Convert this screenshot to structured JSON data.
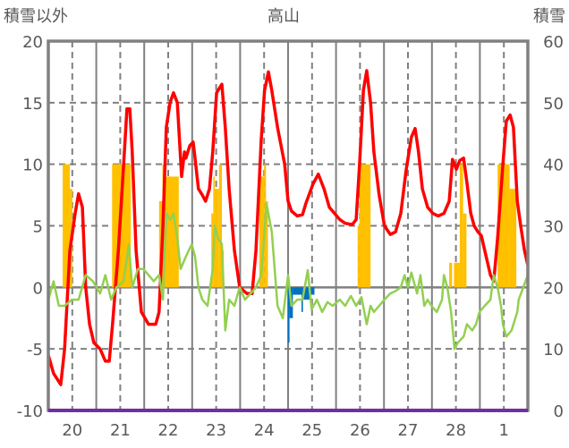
{
  "chart_data": {
    "type": "line",
    "title": "高山",
    "ylabel_left": "積雪以外",
    "ylabel_right": "積雪",
    "ylim_left": [
      -10,
      20
    ],
    "ylim_right": [
      0,
      60
    ],
    "yticks_left": [
      "-10",
      "-5",
      "0",
      "5",
      "10",
      "15",
      "20"
    ],
    "yticks_right": [
      "0",
      "10",
      "20",
      "30",
      "40",
      "50",
      "60"
    ],
    "xlim_days": [
      0,
      10
    ],
    "x_tick_labels": [
      "20",
      "21",
      "22",
      "23",
      "24",
      "25",
      "26",
      "27",
      "28",
      "1"
    ],
    "grid": true,
    "colors": {
      "red": "#ff0000",
      "green": "#92d050",
      "yellow": "#ffc000",
      "blue": "#0070c0",
      "purple": "#7030a0",
      "axis": "#808080",
      "text": "#595959"
    },
    "series": [
      {
        "name": "red-line",
        "axis": "left",
        "color": "#ff0000",
        "points": [
          [
            0,
            -5.5
          ],
          [
            0.11,
            -7
          ],
          [
            0.26,
            -7.9
          ],
          [
            0.34,
            -5
          ],
          [
            0.45,
            3
          ],
          [
            0.56,
            6
          ],
          [
            0.63,
            7.6
          ],
          [
            0.71,
            6.5
          ],
          [
            0.78,
            0
          ],
          [
            0.86,
            -3
          ],
          [
            0.95,
            -4.5
          ],
          [
            1.08,
            -5
          ],
          [
            1.19,
            -6
          ],
          [
            1.27,
            -6
          ],
          [
            1.34,
            -3
          ],
          [
            1.46,
            3
          ],
          [
            1.57,
            10
          ],
          [
            1.64,
            14.5
          ],
          [
            1.7,
            14.5
          ],
          [
            1.75,
            11
          ],
          [
            1.83,
            3
          ],
          [
            1.94,
            -2
          ],
          [
            2.09,
            -3
          ],
          [
            2.24,
            -3
          ],
          [
            2.31,
            -2
          ],
          [
            2.39,
            5
          ],
          [
            2.46,
            13
          ],
          [
            2.54,
            15
          ],
          [
            2.61,
            15.8
          ],
          [
            2.69,
            15
          ],
          [
            2.72,
            13
          ],
          [
            2.78,
            9
          ],
          [
            2.84,
            11
          ],
          [
            2.87,
            10.5
          ],
          [
            2.95,
            11.5
          ],
          [
            3.02,
            11.8
          ],
          [
            3.06,
            10.5
          ],
          [
            3.13,
            8
          ],
          [
            3.21,
            7.5
          ],
          [
            3.28,
            7
          ],
          [
            3.36,
            8
          ],
          [
            3.43,
            11
          ],
          [
            3.51,
            15.8
          ],
          [
            3.54,
            16
          ],
          [
            3.62,
            16.5
          ],
          [
            3.69,
            13
          ],
          [
            3.77,
            8
          ],
          [
            3.88,
            3
          ],
          [
            3.99,
            0
          ],
          [
            4.14,
            -0.5
          ],
          [
            4.25,
            -0.5
          ],
          [
            4.33,
            3
          ],
          [
            4.44,
            12
          ],
          [
            4.51,
            16
          ],
          [
            4.59,
            17.5
          ],
          [
            4.66,
            16
          ],
          [
            4.78,
            13
          ],
          [
            4.93,
            10
          ],
          [
            5.0,
            7
          ],
          [
            5.07,
            6.2
          ],
          [
            5.19,
            5.8
          ],
          [
            5.3,
            5.9
          ],
          [
            5.37,
            6.8
          ],
          [
            5.52,
            8.4
          ],
          [
            5.63,
            9.2
          ],
          [
            5.75,
            8
          ],
          [
            5.86,
            6.5
          ],
          [
            5.97,
            6
          ],
          [
            6.08,
            5.5
          ],
          [
            6.19,
            5.2
          ],
          [
            6.34,
            5.1
          ],
          [
            6.42,
            5.5
          ],
          [
            6.49,
            10
          ],
          [
            6.57,
            16
          ],
          [
            6.64,
            17.6
          ],
          [
            6.72,
            15
          ],
          [
            6.79,
            11
          ],
          [
            6.9,
            7.5
          ],
          [
            7.01,
            5
          ],
          [
            7.13,
            4.3
          ],
          [
            7.24,
            4.5
          ],
          [
            7.35,
            6
          ],
          [
            7.46,
            9.5
          ],
          [
            7.57,
            12.2
          ],
          [
            7.65,
            12.9
          ],
          [
            7.72,
            11
          ],
          [
            7.8,
            8
          ],
          [
            7.91,
            6.5
          ],
          [
            8.02,
            6
          ],
          [
            8.13,
            5.8
          ],
          [
            8.25,
            6
          ],
          [
            8.36,
            7
          ],
          [
            8.43,
            10.4
          ],
          [
            8.51,
            9.6
          ],
          [
            8.58,
            10.3
          ],
          [
            8.66,
            10.5
          ],
          [
            8.73,
            8.5
          ],
          [
            8.81,
            6
          ],
          [
            8.88,
            5
          ],
          [
            8.96,
            4.5
          ],
          [
            9.03,
            4.2
          ],
          [
            9.1,
            3
          ],
          [
            9.22,
            1
          ],
          [
            9.29,
            0.5
          ],
          [
            9.37,
            4
          ],
          [
            9.48,
            10
          ],
          [
            9.55,
            13.5
          ],
          [
            9.63,
            14
          ],
          [
            9.7,
            13
          ],
          [
            9.78,
            7
          ],
          [
            9.85,
            5
          ],
          [
            9.93,
            3
          ],
          [
            10,
            1.8
          ]
        ]
      },
      {
        "name": "green-line",
        "axis": "left",
        "color": "#92d050",
        "points": [
          [
            0,
            -1
          ],
          [
            0.11,
            0.5
          ],
          [
            0.22,
            -1.5
          ],
          [
            0.34,
            -1.5
          ],
          [
            0.49,
            -1
          ],
          [
            0.63,
            -1
          ],
          [
            0.78,
            1
          ],
          [
            0.93,
            0.5
          ],
          [
            1.08,
            -0.5
          ],
          [
            1.19,
            1
          ],
          [
            1.31,
            -1
          ],
          [
            1.42,
            0
          ],
          [
            1.57,
            0.5
          ],
          [
            1.68,
            3.5
          ],
          [
            1.75,
            0
          ],
          [
            1.87,
            1.5
          ],
          [
            1.98,
            1.5
          ],
          [
            2.09,
            1
          ],
          [
            2.2,
            0.5
          ],
          [
            2.31,
            1
          ],
          [
            2.39,
            -1
          ],
          [
            2.46,
            6
          ],
          [
            2.54,
            5.5
          ],
          [
            2.61,
            6
          ],
          [
            2.69,
            4
          ],
          [
            2.76,
            1.5
          ],
          [
            2.87,
            2.5
          ],
          [
            2.99,
            3.5
          ],
          [
            3.06,
            2.5
          ],
          [
            3.13,
            0
          ],
          [
            3.21,
            -1
          ],
          [
            3.32,
            -1.5
          ],
          [
            3.43,
            1.5
          ],
          [
            3.47,
            5
          ],
          [
            3.54,
            4
          ],
          [
            3.62,
            3.5
          ],
          [
            3.69,
            -3.5
          ],
          [
            3.77,
            -1
          ],
          [
            3.88,
            -1.5
          ],
          [
            3.99,
            0
          ],
          [
            4.1,
            -1
          ],
          [
            4.22,
            -0.5
          ],
          [
            4.33,
            0
          ],
          [
            4.44,
            1
          ],
          [
            4.55,
            6.8
          ],
          [
            4.66,
            4.5
          ],
          [
            4.78,
            -1.5
          ],
          [
            4.89,
            -2.5
          ],
          [
            5.0,
            1
          ],
          [
            5.07,
            -1.5
          ],
          [
            5.19,
            -1
          ],
          [
            5.3,
            -1
          ],
          [
            5.41,
            1.4
          ],
          [
            5.49,
            -1.8
          ],
          [
            5.6,
            -1
          ],
          [
            5.71,
            -2
          ],
          [
            5.82,
            -1.2
          ],
          [
            5.93,
            -1.5
          ],
          [
            6.08,
            -1
          ],
          [
            6.19,
            -1.5
          ],
          [
            6.31,
            -0.7
          ],
          [
            6.42,
            -1.5
          ],
          [
            6.53,
            -0.8
          ],
          [
            6.64,
            -3
          ],
          [
            6.72,
            -1.5
          ],
          [
            6.79,
            -2
          ],
          [
            6.9,
            -1.5
          ],
          [
            7.01,
            -1
          ],
          [
            7.13,
            -0.5
          ],
          [
            7.24,
            -0.3
          ],
          [
            7.35,
            0
          ],
          [
            7.43,
            1
          ],
          [
            7.5,
            0
          ],
          [
            7.57,
            1.2
          ],
          [
            7.69,
            -0.5
          ],
          [
            7.76,
            1
          ],
          [
            7.84,
            -1.5
          ],
          [
            7.91,
            -1
          ],
          [
            7.99,
            -1.5
          ],
          [
            8.1,
            -2
          ],
          [
            8.21,
            -1
          ],
          [
            8.25,
            1
          ],
          [
            8.32,
            0
          ],
          [
            8.4,
            -2
          ],
          [
            8.47,
            -5
          ],
          [
            8.54,
            -4.5
          ],
          [
            8.66,
            -4
          ],
          [
            8.73,
            -3
          ],
          [
            8.84,
            -3.5
          ],
          [
            8.92,
            -3
          ],
          [
            8.99,
            -2
          ],
          [
            9.1,
            -1.5
          ],
          [
            9.22,
            -1
          ],
          [
            9.29,
            1
          ],
          [
            9.37,
            0
          ],
          [
            9.44,
            -1.5
          ],
          [
            9.48,
            -3
          ],
          [
            9.55,
            -4
          ],
          [
            9.66,
            -3.5
          ],
          [
            9.78,
            -2
          ],
          [
            9.81,
            -1
          ],
          [
            10,
            1
          ]
        ]
      },
      {
        "name": "snow-depth-line",
        "axis": "right",
        "color": "#7030a0",
        "points": [
          [
            0,
            0
          ],
          [
            10,
            0
          ]
        ]
      }
    ],
    "bars": [
      {
        "name": "yellow-bars",
        "axis": "left",
        "color": "#ffc000",
        "segments": [
          [
            0.3,
            0.45,
            10
          ],
          [
            0.45,
            0.5,
            8
          ],
          [
            1.33,
            1.72,
            10
          ],
          [
            2.31,
            2.38,
            7
          ],
          [
            2.38,
            2.42,
            10
          ],
          [
            2.42,
            2.72,
            9
          ],
          [
            3.4,
            3.44,
            6
          ],
          [
            3.44,
            3.47,
            9
          ],
          [
            3.47,
            3.56,
            8
          ],
          [
            3.56,
            3.62,
            10
          ],
          [
            3.62,
            3.66,
            3
          ],
          [
            4.4,
            4.5,
            9
          ],
          [
            4.5,
            4.54,
            10
          ],
          [
            4.54,
            4.58,
            7
          ],
          [
            6.45,
            6.49,
            5
          ],
          [
            6.49,
            6.72,
            10
          ],
          [
            8.36,
            8.42,
            2
          ],
          [
            8.46,
            8.58,
            2
          ],
          [
            8.58,
            8.65,
            10
          ],
          [
            8.65,
            8.72,
            6
          ],
          [
            9.37,
            9.62,
            10
          ],
          [
            9.62,
            9.76,
            8
          ]
        ]
      },
      {
        "name": "blue-bars",
        "axis": "left",
        "color": "#0070c0",
        "segments": [
          [
            5.0,
            5.03,
            -4.5
          ],
          [
            5.03,
            5.1,
            -2.5
          ],
          [
            5.1,
            5.28,
            -0.6
          ],
          [
            5.28,
            5.31,
            -2
          ],
          [
            5.31,
            5.45,
            -1
          ],
          [
            5.45,
            5.55,
            -0.6
          ]
        ]
      }
    ]
  }
}
